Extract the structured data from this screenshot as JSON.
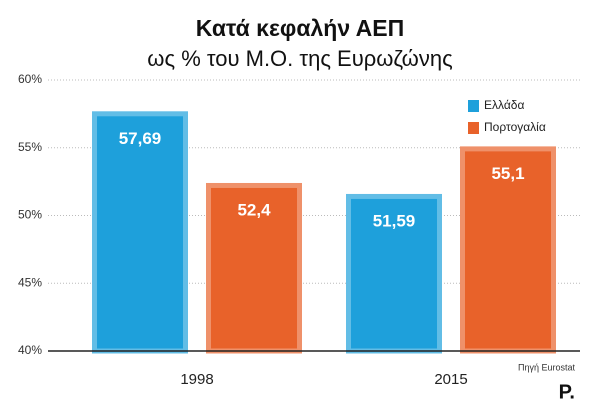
{
  "chart_data": {
    "type": "bar",
    "title": "Κατά κεφαλήν ΑΕΠ",
    "subtitle": "ως % του Μ.Ο. της Ευρωζώνης",
    "categories": [
      "1998",
      "2015"
    ],
    "series": [
      {
        "name": "Ελλάδα",
        "color": "#1ea0db",
        "values": [
          57.69,
          51.59
        ],
        "value_labels": [
          "57,69",
          "51,59"
        ]
      },
      {
        "name": "Πορτογαλία",
        "color": "#e8622a",
        "values": [
          52.4,
          55.1
        ],
        "value_labels": [
          "52,4",
          "55,1"
        ]
      }
    ],
    "ylim": [
      40,
      60
    ],
    "yticks": [
      {
        "value": 40,
        "label": "40%"
      },
      {
        "value": 45,
        "label": "45%"
      },
      {
        "value": 50,
        "label": "50%"
      },
      {
        "value": 55,
        "label": "55%"
      },
      {
        "value": 60,
        "label": "60%"
      }
    ],
    "grid": true,
    "legend": "top-right",
    "source": "Πηγή Eurostat",
    "logo": "P."
  }
}
